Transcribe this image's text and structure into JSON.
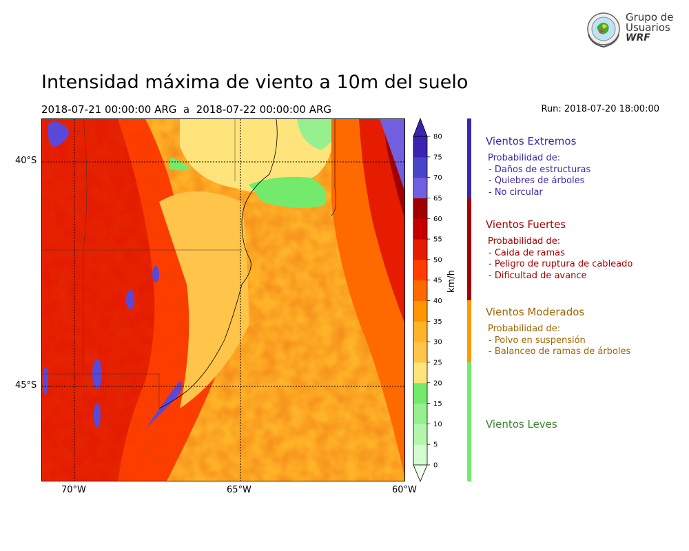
{
  "logo": {
    "line1": "Grupo de",
    "line2": "Usuarios",
    "line3": "WRF"
  },
  "header": {
    "title": "Intensidad máxima de viento a 10m del suelo",
    "period": "2018-07-21 00:00:00 ARG  a  2018-07-22 00:00:00 ARG",
    "run": "Run: 2018-07-20 18:00:00"
  },
  "map": {
    "lon_labels": [
      "70°W",
      "65°W",
      "60°W"
    ],
    "lat_labels": [
      "40°S",
      "45°S"
    ]
  },
  "colorbar": {
    "unit": "km/h",
    "ticks": [
      "0",
      "5",
      "10",
      "15",
      "20",
      "25",
      "30",
      "35",
      "40",
      "45",
      "50",
      "55",
      "60",
      "65",
      "70",
      "75",
      "80"
    ],
    "colors": [
      "#f1fff0",
      "#d3fcd0",
      "#b3f6ac",
      "#96f08e",
      "#74ea6c",
      "#ffe47c",
      "#ffc44a",
      "#ffb328",
      "#ff9500",
      "#ff6a00",
      "#ff3d00",
      "#e51c00",
      "#c60000",
      "#a20000",
      "#7060e0",
      "#4a44c8",
      "#3b22b0"
    ]
  },
  "categories": [
    {
      "title": "Vientos Extremos",
      "color": "#3a27b0",
      "text_color": "#3a27b0",
      "items": [
        "Probabilidad de:",
        "- Daños de estructuras",
        "- Quiebres de árboles",
        "- No circular"
      ]
    },
    {
      "title": "Vientos Fuertes",
      "color": "#a60000",
      "text_color": "#a60000",
      "items": [
        "Probabilidad de:",
        "- Caida de ramas",
        "- Peligro de ruptura de cableado",
        "- Dificultad de avance"
      ]
    },
    {
      "title": "Vientos Moderados",
      "color": "#ff9a00",
      "text_color": "#a06400",
      "items": [
        "Probabilidad de:",
        "- Polvo en suspensión",
        "- Balanceo de ramas de árboles"
      ]
    },
    {
      "title": "Vientos Leves",
      "color": "#74ea6c",
      "text_color": "#3a8030",
      "items": []
    }
  ]
}
